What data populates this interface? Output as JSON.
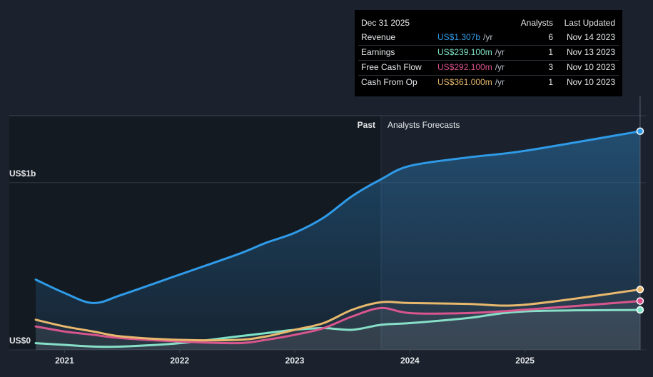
{
  "chart_data": {
    "type": "line",
    "x": [
      2020.75,
      2021,
      2021.25,
      2021.5,
      2022,
      2022.5,
      2022.75,
      2023,
      2023.25,
      2023.5,
      2023.75,
      2024,
      2024.5,
      2025,
      2026
    ],
    "series": [
      {
        "name": "Revenue",
        "color": "#2f9be8",
        "values": [
          0.42,
          0.34,
          0.28,
          0.33,
          0.45,
          0.57,
          0.64,
          0.7,
          0.79,
          0.92,
          1.02,
          1.1,
          1.15,
          1.19,
          1.307
        ]
      },
      {
        "name": "Earnings",
        "color": "#7fe3c8",
        "values": [
          0.04,
          0.03,
          0.02,
          0.02,
          0.04,
          0.08,
          0.1,
          0.12,
          0.13,
          0.12,
          0.15,
          0.16,
          0.19,
          0.23,
          0.239
        ]
      },
      {
        "name": "Free Cash Flow",
        "color": "#d94f8a",
        "values": [
          0.14,
          0.11,
          0.09,
          0.07,
          0.05,
          0.04,
          0.06,
          0.09,
          0.13,
          0.2,
          0.25,
          0.22,
          0.22,
          0.24,
          0.292
        ]
      },
      {
        "name": "Cash From Op",
        "color": "#e8b86d",
        "values": [
          0.18,
          0.14,
          0.11,
          0.08,
          0.06,
          0.06,
          0.08,
          0.12,
          0.16,
          0.24,
          0.285,
          0.28,
          0.275,
          0.27,
          0.361
        ]
      }
    ],
    "xlim": [
      2020.52,
      2026.05
    ],
    "xticks": [
      2021,
      2022,
      2023,
      2024,
      2025
    ],
    "ylim": [
      0,
      1.4
    ],
    "yticks": [
      {
        "value": 0,
        "label": "US$0"
      },
      {
        "value": 1,
        "label": "US$1b"
      }
    ],
    "grid": true,
    "forecast_start": 2023.75,
    "past_label": "Past",
    "forecast_label": "Analysts Forecasts",
    "tooltip": {
      "date": "Dec 31 2025",
      "headers": [
        "Analysts",
        "Last Updated"
      ],
      "rows": [
        {
          "label": "Revenue",
          "value": "US$1.307b",
          "unit": "/yr",
          "analysts": 6,
          "updated": "Nov 14 2023"
        },
        {
          "label": "Earnings",
          "value": "US$239.100m",
          "unit": "/yr",
          "analysts": 1,
          "updated": "Nov 13 2023"
        },
        {
          "label": "Free Cash Flow",
          "value": "US$292.100m",
          "unit": "/yr",
          "analysts": 3,
          "updated": "Nov 10 2023"
        },
        {
          "label": "Cash From Op",
          "value": "US$361.000m",
          "unit": "/yr",
          "analysts": 1,
          "updated": "Nov 10 2023"
        }
      ]
    }
  }
}
